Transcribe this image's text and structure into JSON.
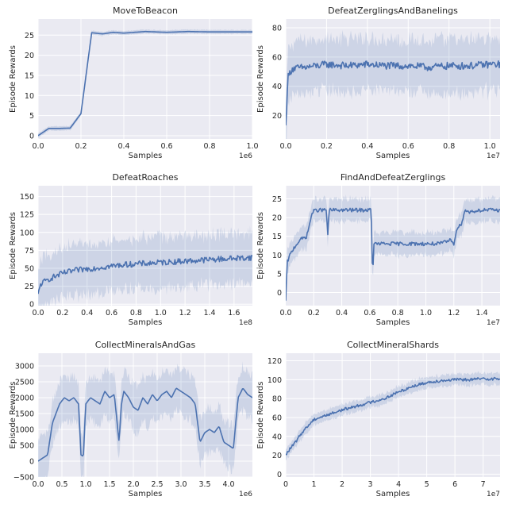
{
  "colors": {
    "plot_bg": "#eaeaf2",
    "grid": "#ffffff",
    "line": "#4c72b0",
    "band": "#4c72b0"
  },
  "chart_data": [
    {
      "type": "line",
      "title": "MoveToBeacon",
      "xlabel": "Samples",
      "ylabel": "Episode Rewards",
      "x_offset": "1e6",
      "xlim": [
        0,
        1
      ],
      "ylim": [
        -0.8,
        29
      ],
      "xticks": [
        0,
        0.2,
        0.4,
        0.6,
        0.8,
        1
      ],
      "xtick_labels": [
        "0.0",
        "0.2",
        "0.4",
        "0.6",
        "0.8",
        "1.0"
      ],
      "yticks": [
        0,
        5,
        10,
        15,
        20,
        25
      ],
      "ytick_labels": [
        "0",
        "5",
        "10",
        "15",
        "20",
        "25"
      ],
      "grid": true,
      "band": 0.5,
      "noise": 0,
      "series": [
        {
          "x": [
            0,
            0.05,
            0.1,
            0.15,
            0.2,
            0.25,
            0.3,
            0.35,
            0.4,
            0.5,
            0.6,
            0.7,
            0.8,
            0.9,
            1.0
          ],
          "y": [
            0,
            1.8,
            1.8,
            1.9,
            5.5,
            25.6,
            25.3,
            25.7,
            25.5,
            25.9,
            25.7,
            25.9,
            25.8,
            25.8,
            25.8
          ]
        }
      ]
    },
    {
      "type": "line",
      "title": "DefeatZerglingsAndBanelings",
      "xlabel": "Samples",
      "ylabel": "Episode Rewards",
      "x_offset": "1e7",
      "xlim": [
        0,
        1.05
      ],
      "ylim": [
        4,
        86
      ],
      "xticks": [
        0,
        0.2,
        0.4,
        0.6,
        0.8,
        1.0
      ],
      "xtick_labels": [
        "0.0",
        "0.2",
        "0.4",
        "0.6",
        "0.8",
        "1.0"
      ],
      "yticks": [
        20,
        40,
        60,
        80
      ],
      "ytick_labels": [
        "20",
        "40",
        "60",
        "80"
      ],
      "grid": true,
      "band": 18,
      "noise": 2.5,
      "series": [
        {
          "x": [
            0,
            0.01,
            0.03,
            0.1,
            0.2,
            0.3,
            0.4,
            0.5,
            0.6,
            0.7,
            0.8,
            0.9,
            1.0,
            1.05
          ],
          "y": [
            12,
            46,
            52,
            53,
            55,
            54,
            55,
            54,
            54,
            53,
            54,
            54,
            55,
            55
          ]
        }
      ]
    },
    {
      "type": "line",
      "title": "DefeatRoaches",
      "xlabel": "Samples",
      "ylabel": "Episode Rewards",
      "x_offset": "1e8",
      "xlim": [
        0,
        1.75
      ],
      "ylim": [
        -2,
        165
      ],
      "xticks": [
        0,
        0.2,
        0.4,
        0.6,
        0.8,
        1.0,
        1.2,
        1.4,
        1.6
      ],
      "xtick_labels": [
        "0.0",
        "0.2",
        "0.4",
        "0.6",
        "0.8",
        "1.0",
        "1.2",
        "1.4",
        "1.6"
      ],
      "yticks": [
        0,
        25,
        50,
        75,
        100,
        125,
        150
      ],
      "ytick_labels": [
        "0",
        "25",
        "50",
        "75",
        "100",
        "125",
        "150"
      ],
      "grid": true,
      "band": 35,
      "noise": 4,
      "series": [
        {
          "x": [
            0,
            0.02,
            0.1,
            0.2,
            0.3,
            0.5,
            0.7,
            0.9,
            1.1,
            1.3,
            1.5,
            1.75
          ],
          "y": [
            12,
            28,
            36,
            43,
            47,
            51,
            55,
            57,
            59,
            61,
            63,
            65
          ]
        }
      ]
    },
    {
      "type": "line",
      "title": "FindAndDefeatZerglings",
      "xlabel": "Samples",
      "ylabel": "Episode Rewards",
      "x_offset": "1e7",
      "xlim": [
        0,
        1.53
      ],
      "ylim": [
        -3.5,
        28.5
      ],
      "xticks": [
        0,
        0.2,
        0.4,
        0.6,
        0.8,
        1.0,
        1.2,
        1.4
      ],
      "xtick_labels": [
        "0.0",
        "0.2",
        "0.4",
        "0.6",
        "0.8",
        "1.0",
        "1.2",
        "1.4"
      ],
      "yticks": [
        0,
        5,
        10,
        15,
        20,
        25
      ],
      "ytick_labels": [
        "0",
        "5",
        "10",
        "15",
        "20",
        "25"
      ],
      "grid": true,
      "band": 3,
      "noise": 0.5,
      "series": [
        {
          "x": [
            0,
            0.01,
            0.03,
            0.06,
            0.1,
            0.15,
            0.19,
            0.22,
            0.29,
            0.3,
            0.31,
            0.35,
            0.45,
            0.55,
            0.61,
            0.62,
            0.63,
            0.7,
            0.8,
            0.9,
            1.0,
            1.1,
            1.18,
            1.2,
            1.22,
            1.25,
            1.28,
            1.3,
            1.4,
            1.53
          ],
          "y": [
            -2.5,
            8,
            10,
            12,
            14,
            15,
            21.5,
            22,
            22,
            15.5,
            22,
            22,
            22,
            22,
            22,
            4.5,
            13,
            13,
            13,
            13,
            13,
            13,
            14,
            13,
            17,
            18,
            22,
            21.5,
            22,
            22
          ]
        }
      ]
    },
    {
      "type": "line",
      "title": "CollectMineralsAndGas",
      "xlabel": "Samples",
      "ylabel": "Episode Rewards",
      "x_offset": "1e6",
      "xlim": [
        0,
        4.5
      ],
      "ylim": [
        -500,
        3400
      ],
      "xticks": [
        0,
        0.5,
        1.0,
        1.5,
        2.0,
        2.5,
        3.0,
        3.5,
        4.0
      ],
      "xtick_labels": [
        "0.0",
        "0.5",
        "1.0",
        "1.5",
        "2.0",
        "2.5",
        "3.0",
        "3.5",
        "4.0"
      ],
      "yticks": [
        -500,
        0,
        500,
        1000,
        1500,
        2000,
        2500,
        3000
      ],
      "ytick_labels": [
        "−500",
        "0",
        "500",
        "1000",
        "1500",
        "2000",
        "2500",
        "3000"
      ],
      "grid": true,
      "band": 700,
      "noise": 0,
      "series": [
        {
          "x": [
            0,
            0.1,
            0.2,
            0.3,
            0.45,
            0.55,
            0.65,
            0.75,
            0.85,
            0.9,
            0.95,
            1.0,
            1.1,
            1.2,
            1.3,
            1.4,
            1.5,
            1.6,
            1.7,
            1.75,
            1.8,
            1.9,
            2.0,
            2.1,
            2.2,
            2.3,
            2.4,
            2.5,
            2.6,
            2.7,
            2.8,
            2.9,
            3.0,
            3.1,
            3.2,
            3.3,
            3.4,
            3.5,
            3.6,
            3.7,
            3.8,
            3.9,
            4.0,
            4.1,
            4.2,
            4.3,
            4.4,
            4.5
          ],
          "y": [
            0,
            100,
            200,
            1200,
            1800,
            2000,
            1900,
            2000,
            1800,
            200,
            150,
            1800,
            2000,
            1900,
            1800,
            2200,
            2000,
            2100,
            600,
            1800,
            2200,
            2000,
            1700,
            1600,
            2000,
            1800,
            2100,
            1900,
            2100,
            2200,
            2000,
            2300,
            2200,
            2100,
            2000,
            1800,
            600,
            900,
            1000,
            900,
            1100,
            600,
            500,
            400,
            2000,
            2300,
            2100,
            2000
          ]
        }
      ]
    },
    {
      "type": "line",
      "title": "CollectMineralShards",
      "xlabel": "Samples",
      "ylabel": "Episode Rewards",
      "x_offset": "1e7",
      "xlim": [
        0,
        7.6
      ],
      "ylim": [
        -3,
        128
      ],
      "xticks": [
        0,
        1,
        2,
        3,
        4,
        5,
        6,
        7
      ],
      "xtick_labels": [
        "0",
        "1",
        "2",
        "3",
        "4",
        "5",
        "6",
        "7"
      ],
      "yticks": [
        0,
        20,
        40,
        60,
        80,
        100,
        120
      ],
      "ytick_labels": [
        "0",
        "20",
        "40",
        "60",
        "80",
        "100",
        "120"
      ],
      "grid": true,
      "band": 6,
      "noise": 1.5,
      "series": [
        {
          "x": [
            0,
            0.1,
            0.3,
            0.6,
            1.0,
            1.5,
            2.0,
            2.5,
            3.0,
            3.5,
            4.0,
            4.5,
            5.0,
            5.5,
            6.0,
            6.5,
            7.0,
            7.6
          ],
          "y": [
            20,
            25,
            32,
            45,
            58,
            63,
            68,
            72,
            76,
            80,
            87,
            93,
            97,
            99,
            100,
            100,
            101,
            101
          ]
        }
      ]
    }
  ]
}
